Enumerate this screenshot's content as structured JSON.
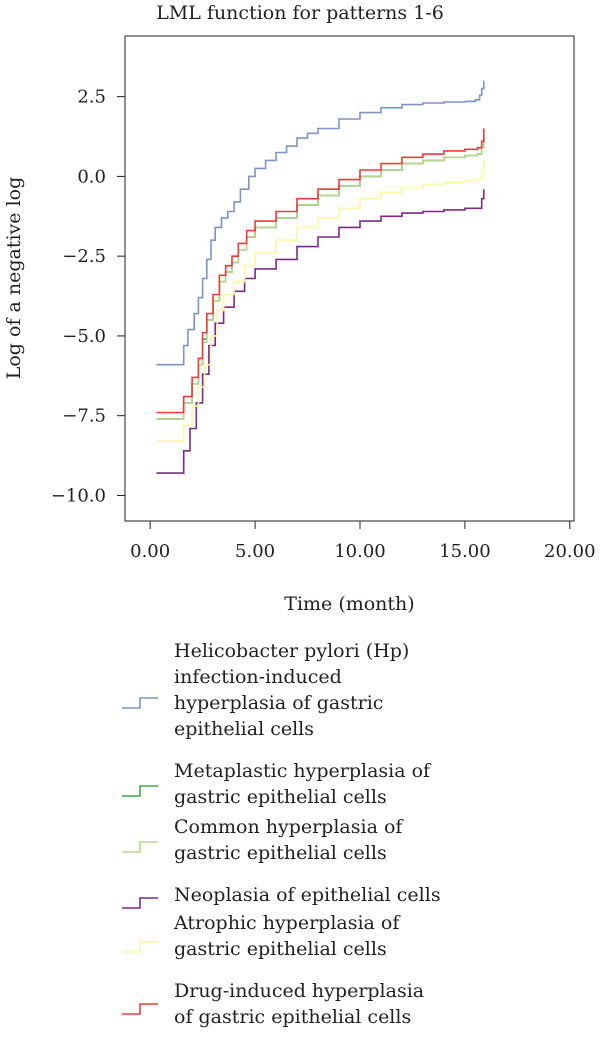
{
  "chart_data": {
    "type": "line",
    "step": true,
    "title": "LML function for patterns 1-6",
    "xlabel": "Time (month)",
    "ylabel": "Log of a negative log",
    "xlim": [
      -1.2,
      20.2
    ],
    "ylim": [
      -10.8,
      4.4
    ],
    "x_ticks": [
      0,
      5,
      10,
      15,
      20
    ],
    "x_tick_labels": [
      "0.00",
      "5.00",
      "10.00",
      "15.00",
      "20.00"
    ],
    "y_ticks": [
      2.5,
      0.0,
      -2.5,
      -5.0,
      -7.5,
      -10.0
    ],
    "y_tick_labels": [
      "2.5",
      "0.0",
      "−2.5",
      "−5.0",
      "−7.5",
      "−10.0"
    ],
    "legend_position": "below",
    "series": [
      {
        "name": "Helicobacter pylori (Hp)\ninfection-induced\nhyperplasia of gastric\nepithelial cells",
        "color": "#7d93c6",
        "points": [
          [
            0.3,
            -5.9
          ],
          [
            1.6,
            -5.9
          ],
          [
            1.6,
            -5.3
          ],
          [
            1.8,
            -4.8
          ],
          [
            2.1,
            -4.3
          ],
          [
            2.3,
            -3.8
          ],
          [
            2.5,
            -3.2
          ],
          [
            2.7,
            -2.6
          ],
          [
            2.9,
            -2.0
          ],
          [
            3.1,
            -1.6
          ],
          [
            3.4,
            -1.3
          ],
          [
            3.7,
            -1.1
          ],
          [
            4.0,
            -0.8
          ],
          [
            4.3,
            -0.4
          ],
          [
            4.7,
            0.0
          ],
          [
            5.0,
            0.25
          ],
          [
            5.5,
            0.5
          ],
          [
            6.0,
            0.75
          ],
          [
            6.5,
            0.95
          ],
          [
            7.0,
            1.2
          ],
          [
            7.5,
            1.35
          ],
          [
            8.0,
            1.5
          ],
          [
            9.0,
            1.8
          ],
          [
            10.0,
            2.0
          ],
          [
            11.0,
            2.15
          ],
          [
            12.0,
            2.25
          ],
          [
            13.0,
            2.3
          ],
          [
            14.0,
            2.33
          ],
          [
            15.0,
            2.35
          ],
          [
            15.5,
            2.4
          ],
          [
            15.7,
            2.55
          ],
          [
            15.8,
            2.75
          ],
          [
            15.9,
            3.0
          ]
        ]
      },
      {
        "name": "Metaplastic hyperplasia of\ngastric epithelial cells",
        "color": "#3aaa4a",
        "points": [
          [
            0.3,
            -7.6
          ],
          [
            1.6,
            -7.6
          ],
          [
            1.6,
            -7.1
          ],
          [
            2.0,
            -6.5
          ],
          [
            2.3,
            -5.9
          ],
          [
            2.5,
            -5.1
          ],
          [
            2.7,
            -4.5
          ],
          [
            3.0,
            -3.9
          ],
          [
            3.3,
            -3.3
          ],
          [
            3.6,
            -3.0
          ],
          [
            3.9,
            -2.7
          ],
          [
            4.2,
            -2.3
          ],
          [
            4.6,
            -1.9
          ],
          [
            5.0,
            -1.6
          ],
          [
            6.0,
            -1.3
          ],
          [
            7.0,
            -0.9
          ],
          [
            8.0,
            -0.6
          ],
          [
            9.0,
            -0.3
          ],
          [
            10.0,
            0.0
          ],
          [
            11.0,
            0.2
          ],
          [
            12.0,
            0.4
          ],
          [
            13.0,
            0.5
          ],
          [
            14.0,
            0.6
          ],
          [
            15.0,
            0.65
          ],
          [
            15.6,
            0.7
          ],
          [
            15.8,
            0.9
          ],
          [
            15.9,
            1.2
          ]
        ]
      },
      {
        "name": "Common hyperplasia of\ngastric epithelial cells",
        "color": "#b7d58b",
        "points": [
          [
            0.3,
            -7.6
          ],
          [
            1.6,
            -7.6
          ],
          [
            1.6,
            -7.1
          ],
          [
            2.0,
            -6.5
          ],
          [
            2.3,
            -5.9
          ],
          [
            2.5,
            -5.2
          ],
          [
            2.7,
            -4.5
          ],
          [
            3.0,
            -3.9
          ],
          [
            3.3,
            -3.3
          ],
          [
            3.6,
            -3.0
          ],
          [
            3.9,
            -2.7
          ],
          [
            4.2,
            -2.3
          ],
          [
            4.6,
            -1.9
          ],
          [
            5.0,
            -1.6
          ],
          [
            6.0,
            -1.3
          ],
          [
            7.0,
            -0.9
          ],
          [
            8.0,
            -0.6
          ],
          [
            9.0,
            -0.3
          ],
          [
            10.0,
            0.0
          ],
          [
            11.0,
            0.2
          ],
          [
            12.0,
            0.4
          ],
          [
            13.0,
            0.5
          ],
          [
            14.0,
            0.6
          ],
          [
            15.0,
            0.65
          ],
          [
            15.6,
            0.7
          ],
          [
            15.8,
            0.9
          ],
          [
            15.9,
            1.2
          ]
        ]
      },
      {
        "name": "Neoplasia of epithelial cells",
        "color": "#7d2a86",
        "points": [
          [
            0.3,
            -9.3
          ],
          [
            1.6,
            -9.3
          ],
          [
            1.6,
            -8.6
          ],
          [
            1.9,
            -7.9
          ],
          [
            2.2,
            -7.1
          ],
          [
            2.5,
            -6.2
          ],
          [
            2.8,
            -5.3
          ],
          [
            3.1,
            -4.6
          ],
          [
            3.5,
            -4.1
          ],
          [
            4.0,
            -3.6
          ],
          [
            4.5,
            -3.2
          ],
          [
            5.0,
            -2.9
          ],
          [
            6.0,
            -2.6
          ],
          [
            7.0,
            -2.2
          ],
          [
            8.0,
            -1.9
          ],
          [
            9.0,
            -1.6
          ],
          [
            10.0,
            -1.4
          ],
          [
            11.0,
            -1.25
          ],
          [
            12.0,
            -1.15
          ],
          [
            13.0,
            -1.1
          ],
          [
            14.0,
            -1.05
          ],
          [
            15.0,
            -1.0
          ],
          [
            15.7,
            -1.0
          ],
          [
            15.8,
            -0.7
          ],
          [
            15.9,
            -0.4
          ]
        ]
      },
      {
        "name": "Atrophic hyperplasia of\ngastric epithelial cells",
        "color": "#fdf6a4",
        "points": [
          [
            0.3,
            -8.3
          ],
          [
            1.6,
            -8.3
          ],
          [
            1.6,
            -7.8
          ],
          [
            2.0,
            -7.2
          ],
          [
            2.3,
            -6.6
          ],
          [
            2.6,
            -5.9
          ],
          [
            2.9,
            -5.0
          ],
          [
            3.2,
            -4.2
          ],
          [
            3.5,
            -3.7
          ],
          [
            4.0,
            -3.3
          ],
          [
            4.5,
            -2.8
          ],
          [
            5.0,
            -2.4
          ],
          [
            6.0,
            -2.0
          ],
          [
            7.0,
            -1.6
          ],
          [
            8.0,
            -1.3
          ],
          [
            9.0,
            -1.0
          ],
          [
            10.0,
            -0.7
          ],
          [
            11.0,
            -0.5
          ],
          [
            12.0,
            -0.35
          ],
          [
            13.0,
            -0.25
          ],
          [
            14.0,
            -0.2
          ],
          [
            15.0,
            -0.15
          ],
          [
            15.6,
            -0.1
          ],
          [
            15.8,
            0.2
          ],
          [
            15.9,
            0.5
          ]
        ]
      },
      {
        "name": "Drug-induced hyperplasia\nof gastric epithelial cells",
        "color": "#ee3b3b",
        "points": [
          [
            0.3,
            -7.4
          ],
          [
            1.6,
            -7.4
          ],
          [
            1.6,
            -6.9
          ],
          [
            2.0,
            -6.3
          ],
          [
            2.3,
            -5.7
          ],
          [
            2.5,
            -4.9
          ],
          [
            2.7,
            -4.3
          ],
          [
            3.0,
            -3.7
          ],
          [
            3.3,
            -3.1
          ],
          [
            3.6,
            -2.8
          ],
          [
            3.9,
            -2.5
          ],
          [
            4.2,
            -2.1
          ],
          [
            4.6,
            -1.7
          ],
          [
            5.0,
            -1.4
          ],
          [
            6.0,
            -1.1
          ],
          [
            7.0,
            -0.7
          ],
          [
            8.0,
            -0.4
          ],
          [
            9.0,
            -0.1
          ],
          [
            10.0,
            0.2
          ],
          [
            11.0,
            0.4
          ],
          [
            12.0,
            0.6
          ],
          [
            13.0,
            0.7
          ],
          [
            14.0,
            0.8
          ],
          [
            15.0,
            0.85
          ],
          [
            15.6,
            0.9
          ],
          [
            15.8,
            1.1
          ],
          [
            15.9,
            1.5
          ]
        ]
      }
    ]
  }
}
